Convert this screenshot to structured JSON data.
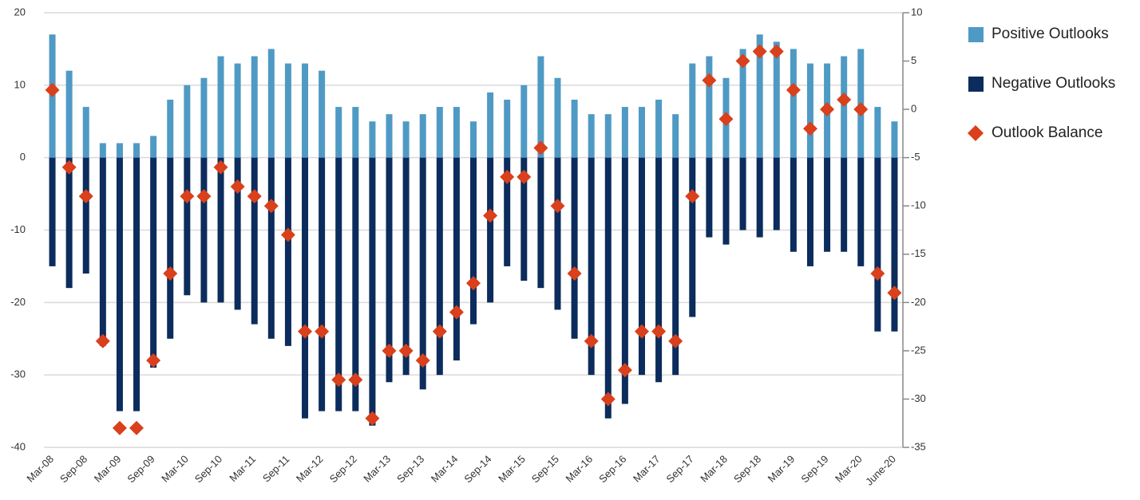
{
  "chart_data": {
    "type": "bar",
    "categories": [
      "Mar-08",
      null,
      "Sep-08",
      null,
      "Mar-09",
      null,
      "Sep-09",
      null,
      "Mar-10",
      null,
      "Sep-10",
      null,
      "Mar-11",
      null,
      "Sep-11",
      null,
      "Mar-12",
      null,
      "Sep-12",
      null,
      "Mar-13",
      null,
      "Sep-13",
      null,
      "Mar-14",
      null,
      "Sep-14",
      null,
      "Mar-15",
      null,
      "Sep-15",
      null,
      "Mar-16",
      null,
      "Sep-16",
      null,
      "Mar-17",
      null,
      "Sep-17",
      null,
      "Mar-18",
      null,
      "Sep-18",
      null,
      "Mar-19",
      null,
      "Sep-19",
      null,
      "Mar-20",
      null,
      "June-20"
    ],
    "series": [
      {
        "name": "Positive Outlooks",
        "type": "bar",
        "color": "#4f9ac4",
        "values": [
          17,
          12,
          7,
          2,
          2,
          2,
          3,
          8,
          10,
          11,
          14,
          13,
          14,
          15,
          13,
          13,
          12,
          7,
          7,
          5,
          6,
          5,
          6,
          7,
          7,
          5,
          9,
          8,
          10,
          14,
          11,
          8,
          6,
          6,
          7,
          7,
          8,
          6,
          13,
          14,
          11,
          15,
          17,
          16,
          15,
          13,
          13,
          14,
          15,
          7,
          5
        ]
      },
      {
        "name": "Negative Outlooks",
        "type": "bar",
        "color": "#0b2c5c",
        "values": [
          -15,
          -18,
          -16,
          -26,
          -35,
          -35,
          -29,
          -25,
          -19,
          -20,
          -20,
          -21,
          -23,
          -25,
          -26,
          -36,
          -35,
          -35,
          -35,
          -37,
          -31,
          -30,
          -32,
          -30,
          -28,
          -23,
          -20,
          -15,
          -17,
          -18,
          -21,
          -25,
          -30,
          -36,
          -34,
          -30,
          -31,
          -30,
          -22,
          -11,
          -12,
          -10,
          -11,
          -10,
          -13,
          -15,
          -13,
          -13,
          -15,
          -24,
          -24
        ]
      },
      {
        "name": "Outlook Balance",
        "type": "scatter",
        "axis": "y2",
        "color": "#d9401b",
        "values": [
          2,
          -6,
          -9,
          -24,
          -33,
          -33,
          -26,
          -17,
          -9,
          -9,
          -6,
          -8,
          -9,
          -10,
          -13,
          -23,
          -23,
          -28,
          -28,
          -32,
          -25,
          -25,
          -26,
          -23,
          -21,
          -18,
          -11,
          -7,
          -7,
          -4,
          -10,
          -17,
          -24,
          -30,
          -27,
          -23,
          -23,
          -24,
          -9,
          3,
          -1,
          5,
          6,
          6,
          2,
          -2,
          0,
          1,
          0,
          -17,
          -19
        ]
      }
    ],
    "ylim": [
      -40,
      20
    ],
    "yticks": [
      -40,
      -30,
      -20,
      -10,
      0,
      10,
      20
    ],
    "y2lim": [
      -35,
      10
    ],
    "y2ticks": [
      -35,
      -30,
      -25,
      -20,
      -15,
      -10,
      -5,
      0,
      5,
      10
    ],
    "grid": true,
    "legend": "right"
  }
}
